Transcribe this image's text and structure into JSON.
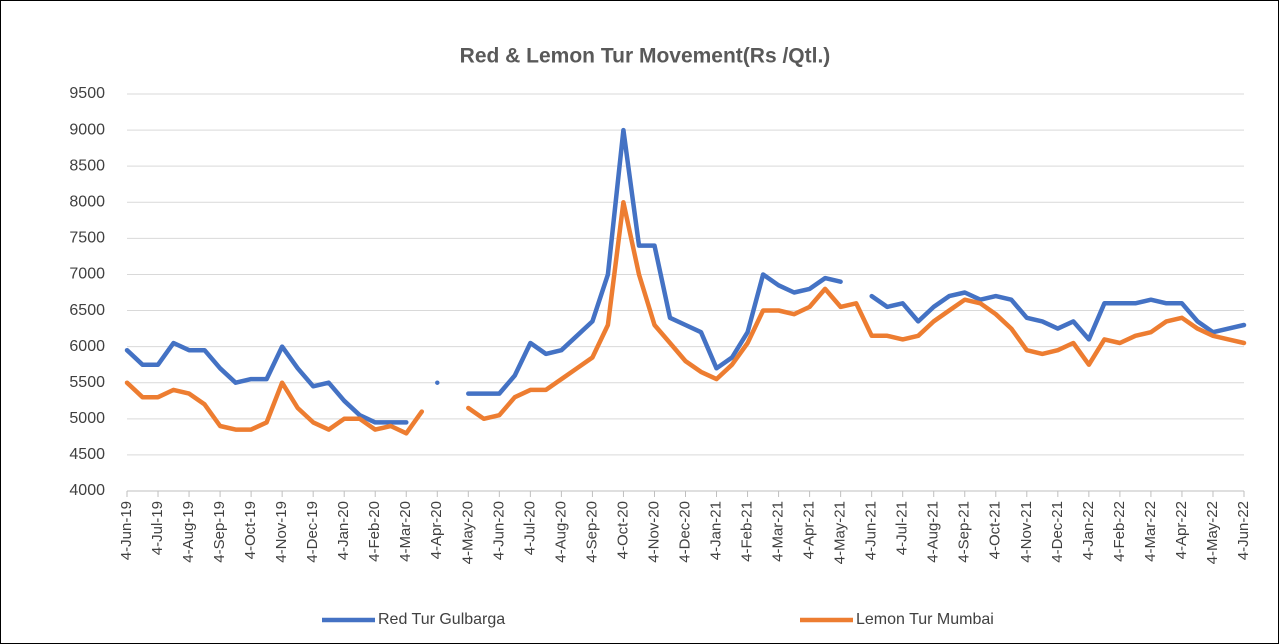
{
  "chart_data": {
    "type": "line",
    "title": "Red & Lemon Tur Movement(Rs /Qtl.)",
    "categories": [
      "4-Jun-19",
      null,
      "4-Jul-19",
      null,
      "4-Aug-19",
      null,
      "4-Sep-19",
      null,
      "4-Oct-19",
      null,
      "4-Nov-19",
      null,
      "4-Dec-19",
      null,
      "4-Jan-20",
      null,
      "4-Feb-20",
      null,
      "4-Mar-20",
      null,
      "4-Apr-20",
      null,
      "4-May-20",
      null,
      "4-Jun-20",
      null,
      "4-Jul-20",
      null,
      "4-Aug-20",
      null,
      "4-Sep-20",
      null,
      "4-Oct-20",
      null,
      "4-Nov-20",
      null,
      "4-Dec-20",
      null,
      "4-Jan-21",
      null,
      "4-Feb-21",
      null,
      "4-Mar-21",
      null,
      "4-Apr-21",
      null,
      "4-May-21",
      null,
      "4-Jun-21",
      null,
      "4-Jul-21",
      null,
      "4-Aug-21",
      null,
      "4-Sep-21",
      null,
      "4-Oct-21",
      null,
      "4-Nov-21",
      null,
      "4-Dec-21",
      null,
      "4-Jan-22",
      null,
      "4-Feb-22",
      null,
      "4-Mar-22",
      null,
      "4-Apr-22",
      null,
      "4-May-22",
      null,
      "4-Jun-22"
    ],
    "series": [
      {
        "name": "Red Tur Gulbarga",
        "color": "#4472c4",
        "values": [
          5950,
          5750,
          5750,
          6050,
          5950,
          5950,
          5700,
          5500,
          5550,
          5550,
          6000,
          5700,
          5450,
          5500,
          5250,
          5050,
          4950,
          4950,
          4950,
          null,
          5500,
          null,
          5350,
          5350,
          5350,
          5600,
          6050,
          5900,
          5950,
          6150,
          6350,
          7000,
          9000,
          7400,
          7400,
          6400,
          6300,
          6200,
          5700,
          5850,
          6200,
          7000,
          6850,
          6750,
          6800,
          6950,
          6900,
          null,
          6700,
          6550,
          6600,
          6350,
          6550,
          6700,
          6750,
          6650,
          6700,
          6650,
          6400,
          6350,
          6250,
          6350,
          6100,
          6600,
          6600,
          6600,
          6650,
          6600,
          6600,
          6350,
          6200,
          6250,
          6300
        ]
      },
      {
        "name": "Lemon Tur Mumbai",
        "color": "#ed7d31",
        "values": [
          5500,
          5300,
          5300,
          5400,
          5350,
          5200,
          4900,
          4850,
          4850,
          4950,
          5500,
          5150,
          4950,
          4850,
          5000,
          5000,
          4850,
          4900,
          4800,
          5100,
          null,
          null,
          5150,
          5000,
          5050,
          5300,
          5400,
          5400,
          5550,
          5700,
          5850,
          6300,
          8000,
          7000,
          6300,
          6050,
          5800,
          5650,
          5550,
          5750,
          6050,
          6500,
          6500,
          6450,
          6550,
          6800,
          6550,
          6600,
          6150,
          6150,
          6100,
          6150,
          6350,
          6500,
          6650,
          6600,
          6450,
          6250,
          5950,
          5900,
          5950,
          6050,
          5750,
          6100,
          6050,
          6150,
          6200,
          6350,
          6400,
          6250,
          6150,
          6100,
          6050
        ]
      }
    ],
    "ylim": [
      4000,
      9500
    ],
    "yticks": [
      4000,
      4500,
      5000,
      5500,
      6000,
      6500,
      7000,
      7500,
      8000,
      8500,
      9000,
      9500
    ],
    "grid": true,
    "legend": "bottom"
  }
}
